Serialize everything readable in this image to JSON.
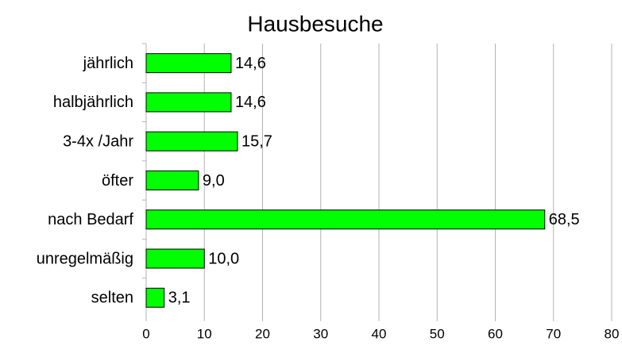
{
  "chart_data": {
    "type": "bar",
    "orientation": "horizontal",
    "title": "Hausbesuche",
    "categories": [
      "jährlich",
      "halbjährlich",
      "3-4x /Jahr",
      "öfter",
      "nach Bedarf",
      "unregelmäßig",
      "selten"
    ],
    "values": [
      14.6,
      14.6,
      15.7,
      9,
      68.5,
      10,
      3.1
    ],
    "value_labels": [
      "14,6",
      "14,6",
      "15,7",
      "9,0",
      "68,5",
      "10,0",
      "3,1"
    ],
    "color": "#00ff00",
    "xlim": [
      0,
      80
    ],
    "xticks": [
      0,
      10,
      20,
      30,
      40,
      50,
      60,
      70,
      80
    ],
    "grid": true
  }
}
